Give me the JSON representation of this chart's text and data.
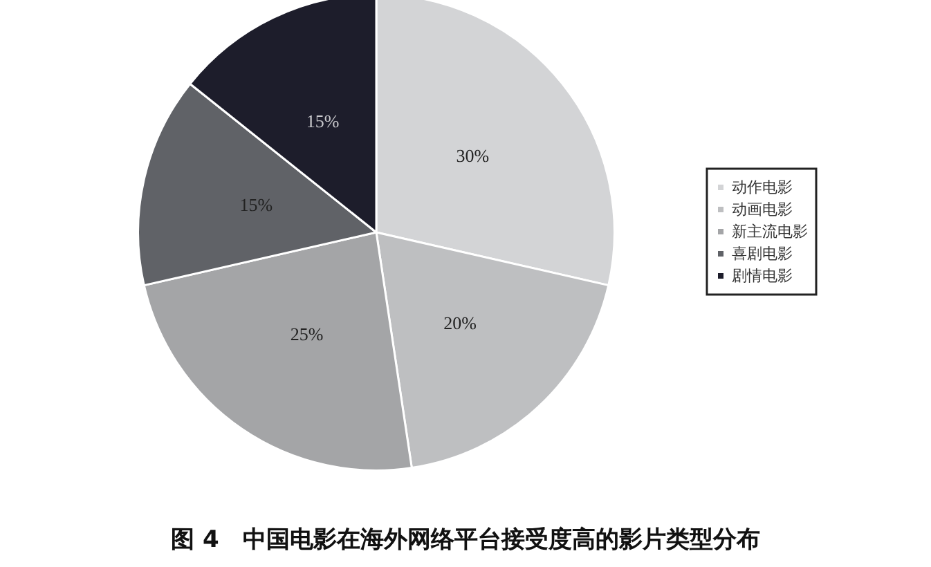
{
  "chart_data": {
    "type": "pie",
    "title": "图 4　中国电影在海外网络平台接受度高的影片类型分布",
    "categories": [
      "动作电影",
      "动画电影",
      "新主流电影",
      "喜剧电影",
      "剧情电影"
    ],
    "values": [
      30,
      20,
      25,
      15,
      15
    ],
    "value_labels": [
      "30%",
      "20%",
      "25%",
      "15%",
      "15%"
    ],
    "colors": [
      "#d3d4d6",
      "#bebfc1",
      "#a4a5a7",
      "#606267",
      "#1d1d2b"
    ],
    "legend": "right"
  }
}
